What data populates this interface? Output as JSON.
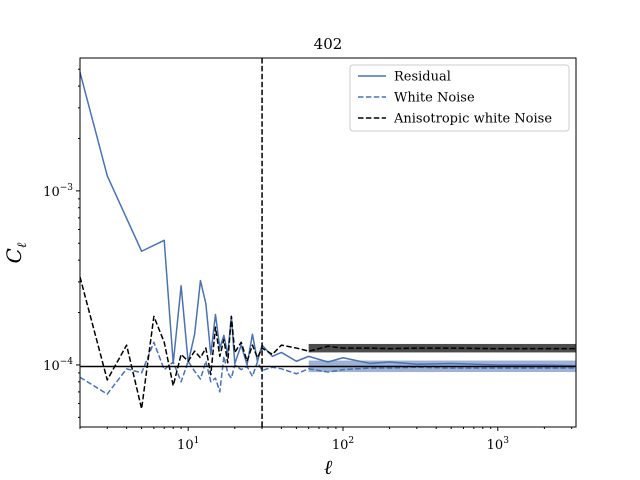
{
  "chart_data": {
    "type": "line",
    "title": "402",
    "xlabel": "ℓ",
    "ylabel": "C",
    "ylabel_sub": "ℓ",
    "x_scale": "log",
    "y_scale": "log",
    "xlim": [
      2,
      3200
    ],
    "ylim": [
      4.4e-05,
      0.0058
    ],
    "x_major_ticks": [
      10,
      100,
      1000
    ],
    "x_tick_labels": [
      {
        "base": "10",
        "exp": "1"
      },
      {
        "base": "10",
        "exp": "2"
      },
      {
        "base": "10",
        "exp": "3"
      }
    ],
    "y_major_ticks": [
      0.0001,
      0.001
    ],
    "y_tick_labels": [
      {
        "base": "10",
        "exp": "−4"
      },
      {
        "base": "10",
        "exp": "−3"
      }
    ],
    "grid": false,
    "legend_position": "top-right",
    "vline_x": 30,
    "hline_y": 9.8e-05,
    "series": [
      {
        "name": "Residual",
        "color": "#4c72b0",
        "style": "solid",
        "x": [
          2,
          3,
          5,
          7,
          8,
          9,
          10,
          11,
          12,
          13,
          14,
          15,
          16,
          17,
          18,
          19,
          20,
          22,
          24,
          26,
          28,
          30,
          35,
          40,
          50,
          60,
          80,
          100,
          150,
          200,
          300,
          500,
          1000,
          2000,
          3200
        ],
        "y": [
          0.0048,
          0.00122,
          0.00045,
          0.00052,
          0.000102,
          0.000285,
          0.000103,
          0.00015,
          0.000305,
          0.000225,
          0.000115,
          0.000195,
          0.000125,
          0.000148,
          0.000115,
          0.00019,
          0.000102,
          0.00013,
          0.0001,
          0.00015,
          0.000105,
          0.00013,
          0.000112,
          0.000118,
          0.000105,
          0.000112,
          0.000104,
          0.00011,
          0.000102,
          0.000104,
          0.000101,
          0.000102,
          0.0001,
          0.0001,
          9.9e-05
        ]
      },
      {
        "name": "White Noise",
        "color": "#4c72b0",
        "style": "dashed",
        "x": [
          2,
          3,
          4,
          5,
          6,
          7,
          8,
          9,
          10,
          11,
          12,
          13,
          14,
          15,
          16,
          17,
          18,
          19,
          20,
          22,
          24,
          26,
          28,
          30,
          35,
          40,
          50,
          60,
          80,
          100,
          150,
          200,
          300,
          500,
          1000,
          2000,
          3200
        ],
        "y": [
          8.5e-05,
          6.8e-05,
          9.5e-05,
          9e-05,
          0.000135,
          9.4e-05,
          0.000104,
          8e-05,
          0.000105,
          9.2e-05,
          8.3e-05,
          0.000105,
          8e-05,
          8.4e-05,
          7e-05,
          0.000112,
          9e-05,
          8.4e-05,
          0.0001,
          9.4e-05,
          9.8e-05,
          8.6e-05,
          0.000104,
          9.3e-05,
          9.7e-05,
          9.5e-05,
          8.9e-05,
          9.5e-05,
          9.1e-05,
          9.4e-05,
          9.6e-05,
          9.6e-05,
          9.7e-05,
          9.6e-05,
          9.6e-05,
          9.6e-05,
          9.6e-05
        ]
      },
      {
        "name": "Anisotropic white Noise",
        "color": "#000000",
        "style": "dashed",
        "x": [
          2,
          3,
          4,
          5,
          6,
          7,
          8,
          9,
          10,
          11,
          12,
          13,
          14,
          15,
          16,
          17,
          18,
          19,
          20,
          22,
          24,
          26,
          28,
          30,
          35,
          40,
          50,
          60,
          80,
          100,
          150,
          200,
          300,
          500,
          1000,
          2000,
          3200
        ],
        "y": [
          0.00032,
          8.2e-05,
          0.00013,
          5.6e-05,
          0.00019,
          0.000135,
          7.6e-05,
          0.000115,
          0.000105,
          0.00012,
          0.00011,
          0.000125,
          8.8e-05,
          0.000165,
          0.000112,
          0.00014,
          0.000103,
          0.00019,
          0.000118,
          0.000135,
          0.000105,
          0.00013,
          0.00011,
          0.000125,
          0.000115,
          0.00013,
          0.000125,
          0.00012,
          0.000128,
          0.000125,
          0.000125,
          0.000124,
          0.000125,
          0.000125,
          0.000124,
          0.000124,
          0.000124
        ]
      }
    ]
  }
}
